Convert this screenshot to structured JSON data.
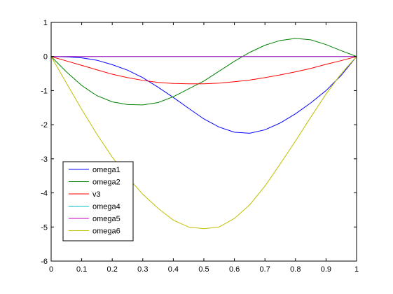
{
  "chart_data": {
    "type": "line",
    "title": "",
    "xlabel": "",
    "ylabel": "",
    "xlim": [
      0,
      1
    ],
    "ylim": [
      -6,
      1
    ],
    "xticks": [
      0,
      0.1,
      0.2,
      0.3,
      0.4,
      0.5,
      0.6,
      0.7,
      0.8,
      0.9,
      1
    ],
    "xtick_labels": [
      "0",
      "0.1",
      "0.2",
      "0.3",
      "0.4",
      "0.5",
      "0.6",
      "0.7",
      "0.8",
      "0.9",
      "1"
    ],
    "yticks": [
      -6,
      -5,
      -4,
      -3,
      -2,
      -1,
      0,
      1
    ],
    "ytick_labels": [
      "-6",
      "-5",
      "-4",
      "-3",
      "-2",
      "-1",
      "0",
      "1"
    ],
    "grid": false,
    "legend_position": "bottom-left",
    "x": [
      0,
      0.05,
      0.1,
      0.15,
      0.2,
      0.25,
      0.3,
      0.35,
      0.4,
      0.45,
      0.5,
      0.55,
      0.6,
      0.65,
      0.7,
      0.75,
      0.8,
      0.85,
      0.9,
      0.95,
      1
    ],
    "series": [
      {
        "name": "omega1",
        "color": "#0000ff",
        "values": [
          0,
          -0.01,
          -0.04,
          -0.11,
          -0.24,
          -0.4,
          -0.62,
          -0.9,
          -1.2,
          -1.52,
          -1.83,
          -2.07,
          -2.22,
          -2.25,
          -2.15,
          -1.95,
          -1.68,
          -1.36,
          -1.0,
          -0.55,
          0
        ]
      },
      {
        "name": "omega2",
        "color": "#008000",
        "values": [
          0,
          -0.45,
          -0.85,
          -1.15,
          -1.33,
          -1.41,
          -1.42,
          -1.35,
          -1.18,
          -0.95,
          -0.72,
          -0.43,
          -0.14,
          0.12,
          0.33,
          0.47,
          0.53,
          0.49,
          0.35,
          0.17,
          0
        ]
      },
      {
        "name": "v3",
        "color": "#ff0000",
        "values": [
          0,
          -0.13,
          -0.26,
          -0.39,
          -0.52,
          -0.62,
          -0.7,
          -0.76,
          -0.79,
          -0.8,
          -0.8,
          -0.78,
          -0.74,
          -0.69,
          -0.62,
          -0.54,
          -0.45,
          -0.35,
          -0.23,
          -0.12,
          0
        ]
      },
      {
        "name": "omega4",
        "color": "#00bfbf",
        "values": [
          0,
          0,
          0,
          0,
          0,
          0,
          0,
          0,
          0,
          0,
          0,
          0,
          0,
          0,
          0,
          0,
          0,
          0,
          0,
          0,
          0
        ]
      },
      {
        "name": "omega5",
        "color": "#bf00bf",
        "values": [
          0,
          0,
          0,
          0,
          0,
          0,
          0,
          0,
          0,
          0,
          0,
          0,
          0,
          0,
          0,
          0,
          0,
          0,
          0,
          0,
          0
        ]
      },
      {
        "name": "omega6",
        "color": "#bfbf00",
        "values": [
          0,
          -0.78,
          -1.55,
          -2.28,
          -2.95,
          -3.53,
          -4.04,
          -4.45,
          -4.8,
          -5.0,
          -5.05,
          -5.0,
          -4.75,
          -4.35,
          -3.8,
          -3.15,
          -2.48,
          -1.78,
          -1.1,
          -0.5,
          0
        ]
      }
    ]
  }
}
